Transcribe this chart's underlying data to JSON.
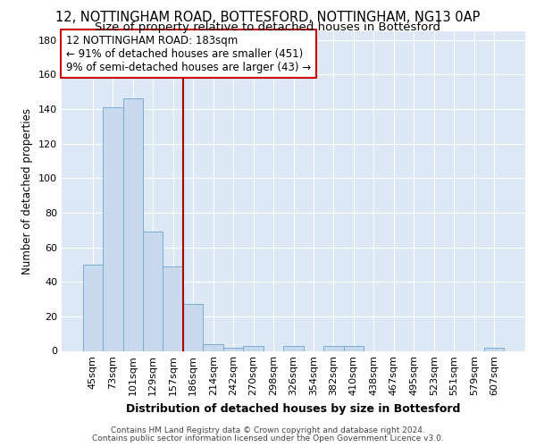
{
  "title_line1": "12, NOTTINGHAM ROAD, BOTTESFORD, NOTTINGHAM, NG13 0AP",
  "title_line2": "Size of property relative to detached houses in Bottesford",
  "xlabel": "Distribution of detached houses by size in Bottesford",
  "ylabel": "Number of detached properties",
  "footer_line1": "Contains HM Land Registry data © Crown copyright and database right 2024.",
  "footer_line2": "Contains public sector information licensed under the Open Government Licence v3.0.",
  "bar_labels": [
    "45sqm",
    "73sqm",
    "101sqm",
    "129sqm",
    "157sqm",
    "186sqm",
    "214sqm",
    "242sqm",
    "270sqm",
    "298sqm",
    "326sqm",
    "354sqm",
    "382sqm",
    "410sqm",
    "438sqm",
    "467sqm",
    "495sqm",
    "523sqm",
    "551sqm",
    "579sqm",
    "607sqm"
  ],
  "bar_values": [
    50,
    141,
    146,
    69,
    49,
    27,
    4,
    2,
    3,
    0,
    3,
    0,
    3,
    3,
    0,
    0,
    0,
    0,
    0,
    0,
    2
  ],
  "bar_color": "#c8d9ee",
  "bar_edge_color": "#7aadd4",
  "highlight_bar_index": 5,
  "highlight_color": "#aa0000",
  "annotation_line1": "12 NOTTINGHAM ROAD: 183sqm",
  "annotation_line2": "← 91% of detached houses are smaller (451)",
  "annotation_line3": "9% of semi-detached houses are larger (43) →",
  "annotation_box_color": "white",
  "annotation_box_edge": "#cc0000",
  "ylim": [
    0,
    185
  ],
  "yticks": [
    0,
    20,
    40,
    60,
    80,
    100,
    120,
    140,
    160,
    180
  ],
  "bg_color": "#dce8f5",
  "grid_color": "white",
  "title_fontsize": 10.5,
  "subtitle_fontsize": 9.5,
  "ylabel_fontsize": 8.5,
  "xlabel_fontsize": 9,
  "tick_fontsize": 8,
  "footer_fontsize": 6.5,
  "annotation_fontsize": 8.5
}
